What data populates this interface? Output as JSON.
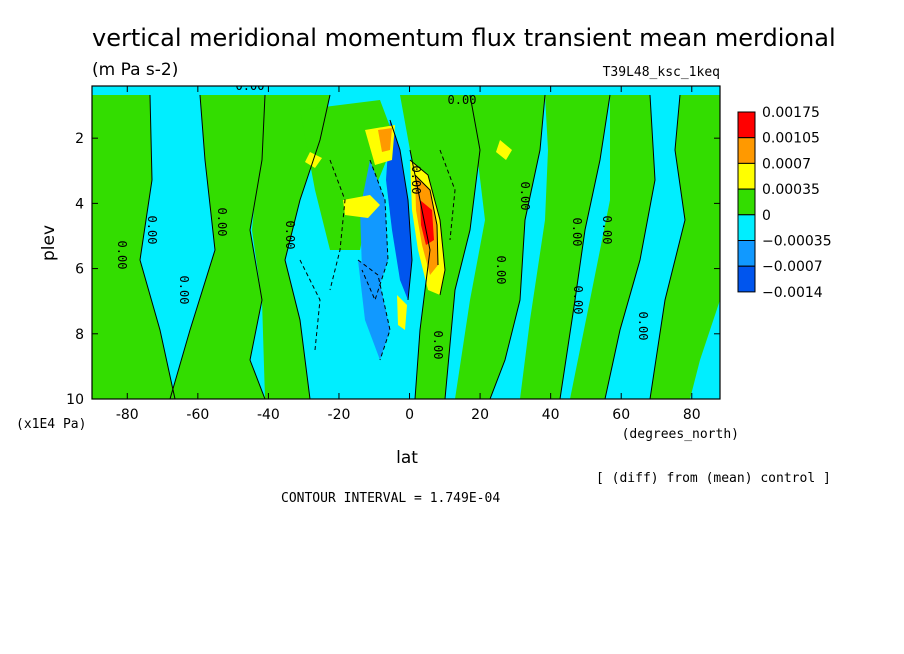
{
  "chart_data": {
    "type": "heatmap",
    "title": "vertical meridional momentum flux transient mean merdional",
    "units": "(m Pa s-2)",
    "run_label": "T39L48_ksc_1keq",
    "xlabel": "lat",
    "x_units": "(degrees_north)",
    "ylabel": "plev",
    "y_units": "(x1E4 Pa)",
    "xlim": [
      -90,
      88
    ],
    "ylim": [
      10,
      0.4
    ],
    "x_ticks": [
      "-80",
      "-60",
      "-40",
      "-20",
      "0",
      "20",
      "40",
      "60",
      "80"
    ],
    "y_ticks": [
      "2",
      "4",
      "6",
      "8",
      "10"
    ],
    "contour_interval_text": "CONTOUR INTERVAL = 1.749E-04",
    "diff_note": "[ (diff) from (mean) control ]",
    "legend": {
      "levels": [
        "0.00175",
        "0.00105",
        "0.0007",
        "0.00035",
        "0",
        "-0.00035",
        "-0.0007",
        "-0.0014"
      ],
      "colors": [
        "#ff0000",
        "#ff9900",
        "#ffff00",
        "#33dd00",
        "#00eeff",
        "#1199ff",
        "#0055ee"
      ]
    },
    "contour_labels": [
      "0.00",
      "0.00",
      "0.00",
      "0.00",
      "0.00",
      "0.00",
      "0.00",
      "0.00",
      "0.00",
      "0.00",
      "0.00",
      "0.00",
      "0.00",
      "0.00",
      "0.00"
    ]
  }
}
